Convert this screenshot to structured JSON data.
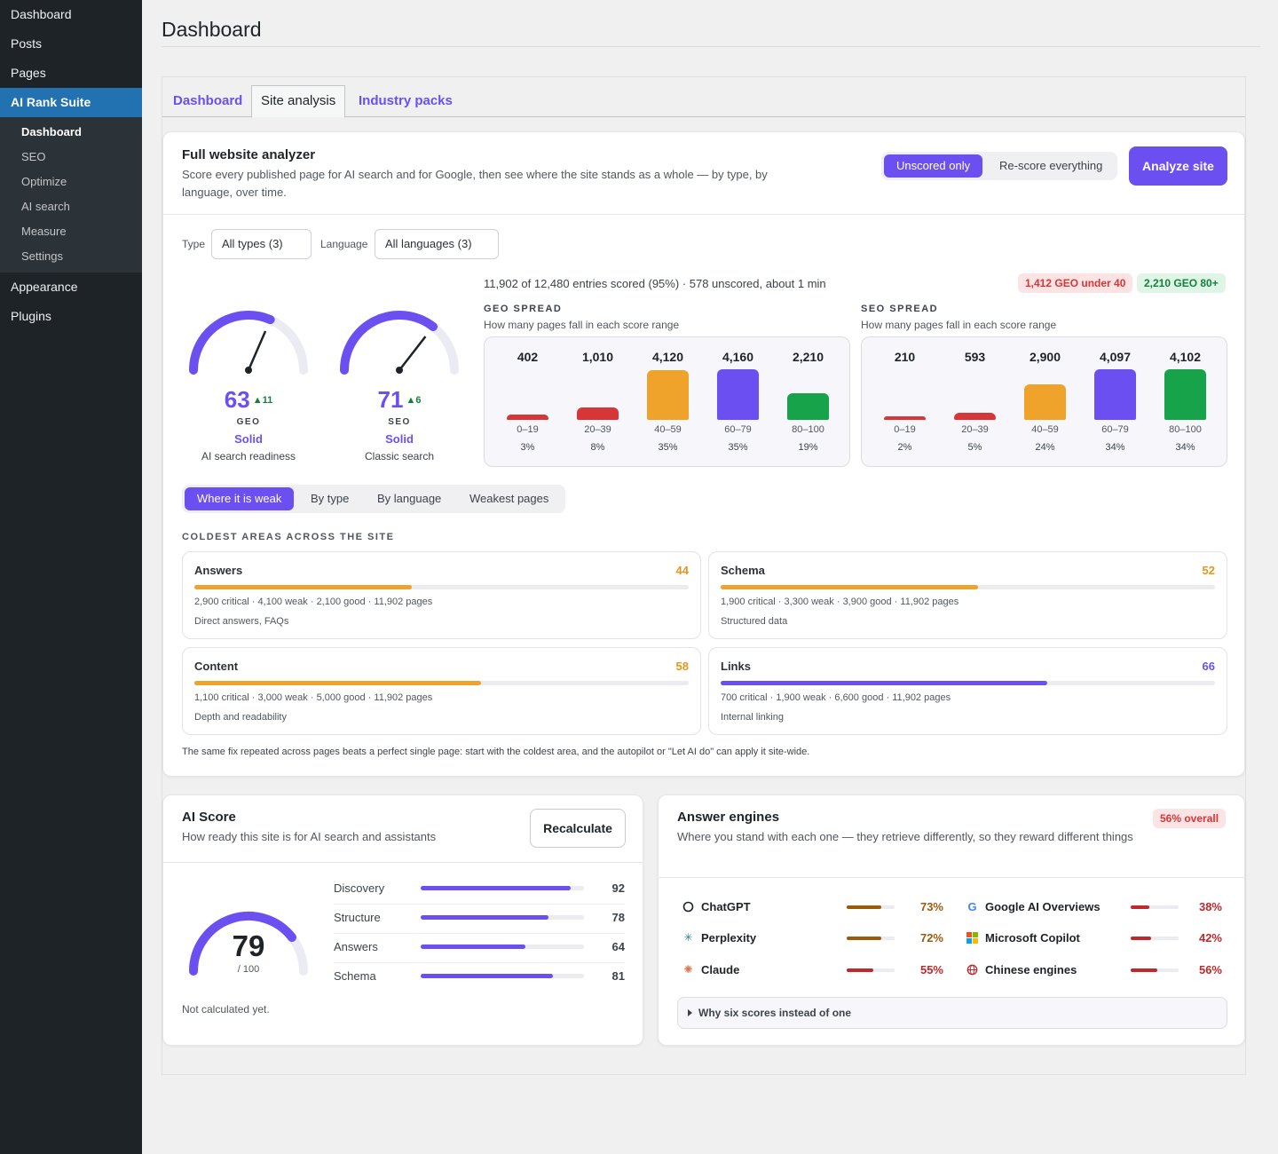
{
  "sidebar": {
    "items": [
      {
        "label": "Dashboard"
      },
      {
        "label": "Posts"
      },
      {
        "label": "Pages"
      },
      {
        "label": "AI Rank Suite"
      },
      {
        "label": "Appearance"
      },
      {
        "label": "Plugins"
      }
    ],
    "submenu": [
      {
        "label": "Dashboard"
      },
      {
        "label": "SEO"
      },
      {
        "label": "Optimize"
      },
      {
        "label": "AI search"
      },
      {
        "label": "Measure"
      },
      {
        "label": "Settings"
      }
    ]
  },
  "page": {
    "title": "Dashboard"
  },
  "tabs": [
    {
      "label": "Dashboard"
    },
    {
      "label": "Site analysis"
    },
    {
      "label": "Industry packs"
    }
  ],
  "analyzer": {
    "title": "Full website analyzer",
    "description": "Score every published page for AI search and for Google, then see where the site stands as a whole — by type, by language, over time.",
    "mode_options": [
      "Unscored only",
      "Re-score everything"
    ],
    "selected_mode": "Unscored only",
    "analyze_button": "Analyze site",
    "filters": {
      "type_label": "Type",
      "type_value": "All types (3)",
      "language_label": "Language",
      "language_value": "All languages (3)"
    },
    "gauges": [
      {
        "score": "63",
        "value": 63,
        "delta": "▲11",
        "kind": "GEO",
        "band": "Solid",
        "subtitle": "AI search readiness"
      },
      {
        "score": "71",
        "value": 71,
        "delta": "▲6",
        "kind": "SEO",
        "band": "Solid",
        "subtitle": "Classic search"
      }
    ],
    "status": "11,902 of 12,480 entries scored (95%) · 578 unscored, about 1 min",
    "badges": {
      "low": "1,412 GEO under 40",
      "high": "2,210 GEO 80+"
    },
    "geo_spread": {
      "title": "GEO SPREAD",
      "subtitle": "How many pages fall in each score range",
      "buckets": [
        {
          "count": "402",
          "value": 402,
          "range": "0–19",
          "pct": "3%",
          "color": "#d63638"
        },
        {
          "count": "1,010",
          "value": 1010,
          "range": "20–39",
          "pct": "8%",
          "color": "#d63638"
        },
        {
          "count": "4,120",
          "value": 4120,
          "range": "40–59",
          "pct": "35%",
          "color": "#f0a32a"
        },
        {
          "count": "4,160",
          "value": 4160,
          "range": "60–79",
          "pct": "35%",
          "color": "#6c4ff0"
        },
        {
          "count": "2,210",
          "value": 2210,
          "range": "80–100",
          "pct": "19%",
          "color": "#16a34a"
        }
      ]
    },
    "seo_spread": {
      "title": "SEO SPREAD",
      "subtitle": "How many pages fall in each score range",
      "buckets": [
        {
          "count": "210",
          "value": 210,
          "range": "0–19",
          "pct": "2%",
          "color": "#d63638"
        },
        {
          "count": "593",
          "value": 593,
          "range": "20–39",
          "pct": "5%",
          "color": "#d63638"
        },
        {
          "count": "2,900",
          "value": 2900,
          "range": "40–59",
          "pct": "24%",
          "color": "#f0a32a"
        },
        {
          "count": "4,097",
          "value": 4097,
          "range": "60–79",
          "pct": "34%",
          "color": "#6c4ff0"
        },
        {
          "count": "4,102",
          "value": 4102,
          "range": "80–100",
          "pct": "34%",
          "color": "#16a34a"
        }
      ]
    },
    "view_tabs": [
      "Where it is weak",
      "By type",
      "By language",
      "Weakest pages"
    ],
    "active_view": "Where it is weak",
    "coldest_title": "COLDEST AREAS ACROSS THE SITE",
    "areas": [
      {
        "name": "Answers",
        "score": "44",
        "value": 44,
        "stats": "2,900 critical · 4,100 weak · 2,100 good · 11,902 pages",
        "note": "Direct answers, FAQs",
        "color": "#f0a32a"
      },
      {
        "name": "Schema",
        "score": "52",
        "value": 52,
        "stats": "1,900 critical · 3,300 weak · 3,900 good · 11,902 pages",
        "note": "Structured data",
        "color": "#f0a32a"
      },
      {
        "name": "Content",
        "score": "58",
        "value": 58,
        "stats": "1,100 critical · 3,000 weak · 5,000 good · 11,902 pages",
        "note": "Depth and readability",
        "color": "#f0a32a"
      },
      {
        "name": "Links",
        "score": "66",
        "value": 66,
        "stats": "700 critical · 1,900 weak · 6,600 good · 11,902 pages",
        "note": "Internal linking",
        "color": "#6c4ff0"
      }
    ],
    "footnote": "The same fix repeated across pages beats a perfect single page: start with the coldest area, and the autopilot or \"Let AI do\" can apply it site-wide."
  },
  "ai_score": {
    "title": "AI Score",
    "description": "How ready this site is for AI search and assistants",
    "button": "Recalculate",
    "score": "79",
    "value": 79,
    "max": "/ 100",
    "status": "Not calculated yet.",
    "breakdown": [
      {
        "label": "Discovery",
        "value": 92,
        "display": "92"
      },
      {
        "label": "Structure",
        "value": 78,
        "display": "78"
      },
      {
        "label": "Answers",
        "value": 64,
        "display": "64"
      },
      {
        "label": "Schema",
        "value": 81,
        "display": "81"
      }
    ]
  },
  "answer_engines": {
    "title": "Answer engines",
    "description": "Where you stand with each one — they retrieve differently, so they reward different things",
    "badge": "56% overall",
    "engines": [
      {
        "name": "ChatGPT",
        "icon": "chatgpt-icon",
        "value": 73,
        "pct": "73%",
        "color": "#9a5b0d"
      },
      {
        "name": "Google AI Overviews",
        "icon": "google-icon",
        "value": 38,
        "pct": "38%",
        "color": "#c0282b"
      },
      {
        "name": "Perplexity",
        "icon": "perplexity-icon",
        "value": 72,
        "pct": "72%",
        "color": "#9a5b0d"
      },
      {
        "name": "Microsoft Copilot",
        "icon": "microsoft-icon",
        "value": 42,
        "pct": "42%",
        "color": "#c0282b"
      },
      {
        "name": "Claude",
        "icon": "claude-icon",
        "value": 55,
        "pct": "55%",
        "color": "#c0282b"
      },
      {
        "name": "Chinese engines",
        "icon": "globe-icon",
        "value": 56,
        "pct": "56%",
        "color": "#c0282b"
      }
    ],
    "details_label": "Why six scores instead of one"
  }
}
